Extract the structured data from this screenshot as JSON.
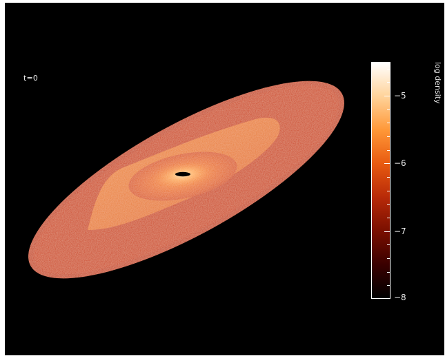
{
  "image": {
    "time_label": "t=0",
    "background_color": "#000000"
  },
  "colorbar": {
    "title": "log density",
    "min": -8,
    "max": -4.5,
    "ticks": [
      {
        "value": -5,
        "label": "−5"
      },
      {
        "value": -6,
        "label": "−6"
      },
      {
        "value": -7,
        "label": "−7"
      },
      {
        "value": -8,
        "label": "−8"
      }
    ],
    "minor_step": 0.2,
    "colors": [
      "#000000",
      "#3a0000",
      "#7a0f00",
      "#b82a08",
      "#e85a10",
      "#ff9838",
      "#ffd39a",
      "#ffffff"
    ]
  },
  "disc": {
    "outer_color": "#c83a14",
    "inner_color": "#e8681e",
    "core_color": "#ff9c3c",
    "hole_color": "#000000"
  }
}
